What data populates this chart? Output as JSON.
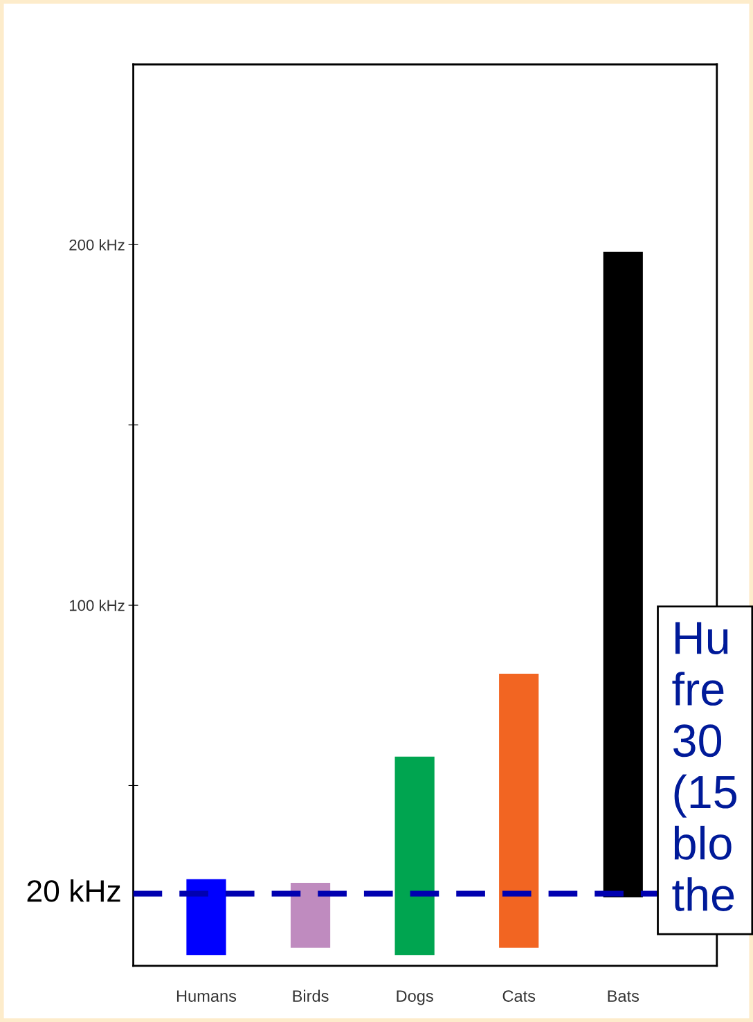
{
  "chart_data": {
    "type": "bar",
    "categories": [
      "Humans",
      "Birds",
      "Dogs",
      "Cats",
      "Bats"
    ],
    "base": [
      3,
      5,
      3,
      5,
      19
    ],
    "values": [
      21,
      18,
      55,
      76,
      179
    ],
    "colors": [
      "#0000ff",
      "#bf8bbf",
      "#00a550",
      "#f26522",
      "#000000"
    ],
    "ylim": [
      0,
      250
    ],
    "yticks": [
      {
        "value": 50,
        "label": null
      },
      {
        "value": 100,
        "label": "100 kHz"
      },
      {
        "value": 150,
        "label": null
      },
      {
        "value": 200,
        "label": "200 kHz"
      }
    ],
    "ref_lines": [
      {
        "axis": "y",
        "value": 20,
        "label": "20 kHz",
        "color": "#0000b0",
        "line_style": "dashed"
      }
    ],
    "annotations": [
      "Hu\nfre\n30\n(15\nblo\nthe"
    ],
    "grid": false,
    "legend": false
  }
}
